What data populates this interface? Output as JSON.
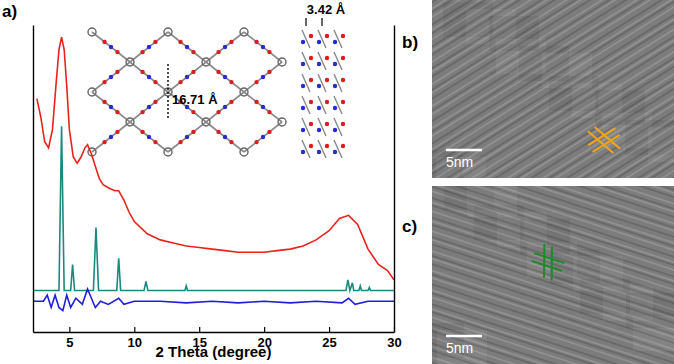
{
  "chart_data": {
    "type": "line",
    "title": "a)",
    "xlabel": "2 Theta (degree)",
    "xlim": [
      2.2,
      30
    ],
    "xticks": [
      5,
      10,
      15,
      20,
      25,
      30
    ],
    "ylim": [
      0,
      100
    ],
    "yticks": [],
    "tick_labels": "x",
    "annotations": [
      {
        "text": "16.71 Å"
      },
      {
        "text": "3.42 Å"
      }
    ],
    "series": [
      {
        "color": "#e8231c",
        "x": [
          2.5,
          2.8,
          3.1,
          3.4,
          3.7,
          4.0,
          4.2,
          4.4,
          4.6,
          4.8,
          5.0,
          5.3,
          5.6,
          5.9,
          6.2,
          6.4,
          6.7,
          7.0,
          7.3,
          7.6,
          8.0,
          8.5,
          8.8,
          9.2,
          9.6,
          10,
          11,
          12,
          13,
          14,
          15,
          16,
          17,
          18,
          19,
          20,
          21,
          22,
          23,
          24,
          25,
          25.8,
          26.5,
          27.2,
          28,
          28.8,
          29.5,
          30
        ],
        "values": [
          76,
          70,
          62,
          60,
          66,
          82,
          92,
          96,
          92,
          80,
          66,
          57,
          55,
          57,
          60,
          61,
          58,
          54,
          50,
          48,
          47,
          46,
          46,
          43,
          39,
          36,
          32,
          30,
          29,
          28,
          27.5,
          27,
          26.5,
          26,
          26,
          26,
          26.5,
          27,
          28,
          30,
          33,
          37,
          38,
          35,
          27,
          22,
          20,
          17
        ]
      },
      {
        "color": "#1a8a80",
        "x": [
          2.2,
          4.2,
          4.4,
          4.6,
          5.1,
          5.25,
          5.4,
          6.85,
          7.05,
          7.25,
          8.65,
          8.8,
          8.95,
          10.75,
          10.9,
          11.05,
          13.9,
          14.0,
          14.1,
          26.3,
          26.45,
          26.6,
          26.8,
          26.9,
          27.3,
          27.4,
          27.5,
          28.0,
          28.1,
          28.2,
          30
        ],
        "values": [
          13.5,
          13.5,
          67,
          13.5,
          13.5,
          22,
          13.5,
          13.5,
          34,
          13.5,
          13.5,
          24,
          13.5,
          13.5,
          16.5,
          13.5,
          13.5,
          15,
          13.5,
          13.5,
          17,
          13.5,
          16,
          13.5,
          13.5,
          15,
          13.5,
          13.5,
          14.5,
          13.5,
          13.5
        ]
      },
      {
        "color": "#1f1fd6",
        "x": [
          2.2,
          3.0,
          3.3,
          3.6,
          3.9,
          4.2,
          4.5,
          4.8,
          5.1,
          5.5,
          6.0,
          6.4,
          6.7,
          7.0,
          7.4,
          8.0,
          8.8,
          9.2,
          10,
          12,
          14,
          16,
          18,
          20,
          22,
          24,
          26,
          26.5,
          27,
          28,
          30
        ],
        "values": [
          10,
          10,
          12,
          8,
          12,
          8,
          7,
          12,
          8,
          11,
          9,
          14,
          11,
          8,
          10,
          9,
          11,
          9,
          10,
          10,
          9.5,
          10,
          9.5,
          10,
          9.5,
          10,
          9.5,
          11,
          9,
          10,
          10
        ]
      }
    ]
  },
  "images": [
    {
      "label": "b)",
      "scale_bar": "5nm"
    },
    {
      "label": "c)",
      "scale_bar": "5nm"
    }
  ]
}
